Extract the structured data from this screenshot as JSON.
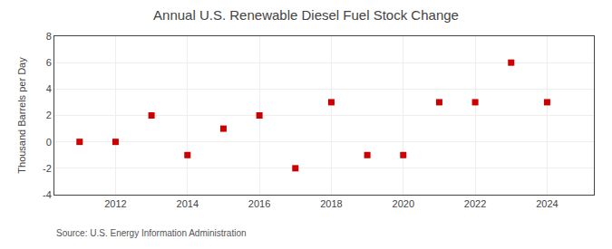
{
  "chart_data": {
    "type": "scatter",
    "title": "Annual U.S. Renewable Diesel Fuel Stock Change",
    "ylabel": "Thousand Barrels per Day",
    "annotation": "Source: U.S. Energy Information Administration",
    "x": [
      2011,
      2012,
      2013,
      2014,
      2015,
      2016,
      2017,
      2018,
      2019,
      2020,
      2021,
      2022,
      2023,
      2024
    ],
    "values": [
      0,
      0,
      2,
      -1,
      1,
      2,
      -2,
      3,
      -1,
      -1,
      3,
      3,
      6,
      3
    ],
    "color": "#cc0000",
    "marker": "square",
    "xlim": [
      2010.3,
      2025.3
    ],
    "xticks": [
      2012,
      2014,
      2016,
      2018,
      2020,
      2022,
      2024
    ],
    "ylim": [
      -4,
      8
    ],
    "yticks": [
      -4,
      -2,
      0,
      2,
      4,
      6,
      8
    ],
    "grid": true
  }
}
